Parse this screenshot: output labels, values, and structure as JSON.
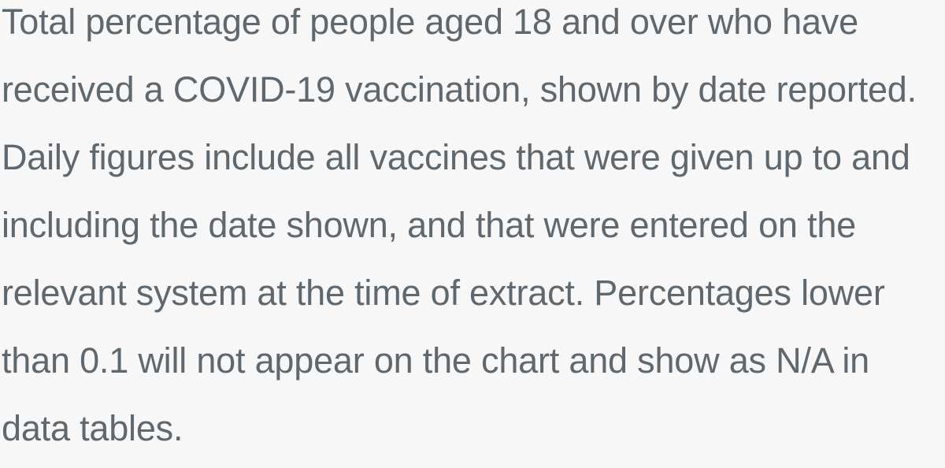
{
  "description": {
    "lines": [
      "Total percentage of people aged 18 and over who have",
      "received a COVID-19 vaccination, shown by date reported.",
      "Daily figures include all vaccines that were given up to and",
      "including the date shown, and that were entered on the",
      "relevant system at the time of extract. Percentages lower",
      "than 0.1 will not appear on the chart and show as N/A in",
      "data tables."
    ]
  },
  "colors": {
    "background": "#f7f7f7",
    "text": "#5f686e"
  }
}
